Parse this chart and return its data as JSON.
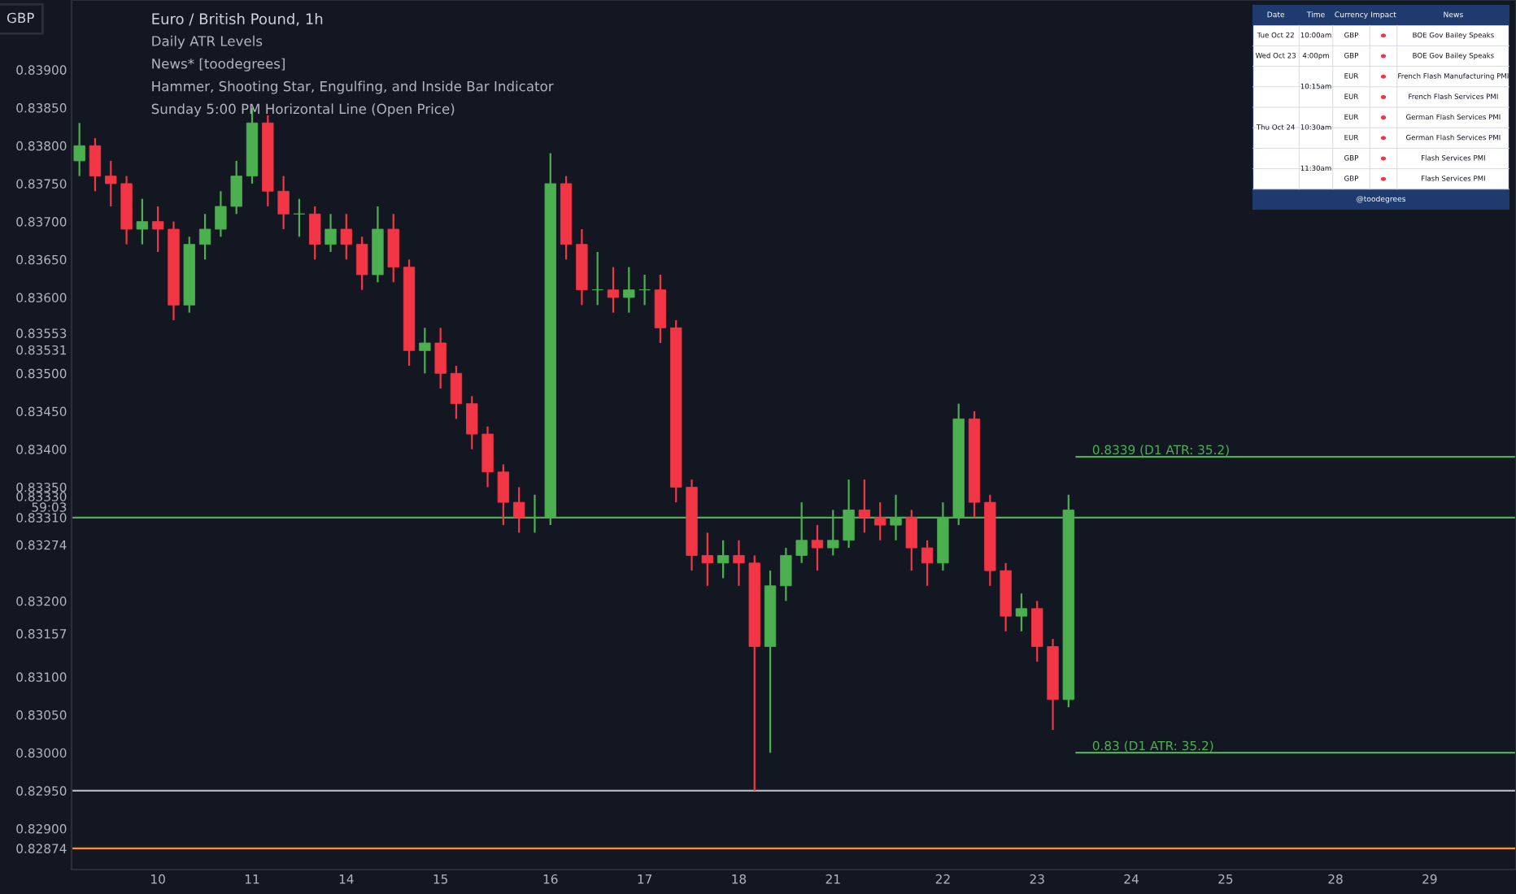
{
  "chart_data": [
    {
      "type": "candlestick",
      "title": "Euro / British Pound, 1h",
      "ylabel": "GBP",
      "annotations": [
        "Daily ATR Levels",
        "News* [toodegrees]",
        "Hammer, Shooting Star, Engulfing, and Inside Bar Indicator",
        "Sunday 5:00 PM Horizontal Line (Open Price)"
      ],
      "colors": [
        "#4caf50",
        "#f23645",
        "#f23645",
        "#f23645",
        "#4caf50",
        "#f23645",
        "#f23645",
        "#4caf50",
        "#4caf50",
        "#4caf50",
        "#4caf50",
        "#4caf50",
        "#f23645",
        "#f23645",
        "#4caf50",
        "#f23645",
        "#4caf50",
        "#f23645",
        "#f23645",
        "#4caf50",
        "#f23645",
        "#f23645",
        "#4caf50",
        "#f23645",
        "#f23645",
        "#f23645",
        "#f23645",
        "#f23645",
        "#f23645",
        "#4caf50",
        "#4caf50",
        "#f23645",
        "#f23645",
        "#4caf50",
        "#f23645",
        "#4caf50",
        "#4caf50",
        "#f23645",
        "#f23645",
        "#f23645",
        "#f23645",
        "#4caf50",
        "#f23645",
        "#f23645",
        "#4caf50",
        "#4caf50",
        "#4caf50",
        "#f23645",
        "#4caf50",
        "#4caf50",
        "#f23645",
        "#f23645",
        "#4caf50",
        "#f23645",
        "#f23645",
        "#4caf50",
        "#4caf50",
        "#f23645",
        "#f23645",
        "#f23645",
        "#4caf50",
        "#f23645",
        "#f23645",
        "#4caf50",
        null,
        null,
        null,
        null,
        null,
        null,
        null,
        null,
        null,
        null,
        null,
        null,
        null,
        null,
        null,
        null,
        null,
        null,
        null,
        null,
        null,
        null,
        null,
        null,
        null,
        null,
        null,
        null
      ],
      "categories": [
        null,
        null,
        null,
        null,
        null,
        "10",
        null,
        null,
        null,
        null,
        null,
        "11",
        null,
        null,
        null,
        null,
        null,
        "14",
        null,
        null,
        null,
        null,
        null,
        "15",
        null,
        null,
        null,
        null,
        null,
        null,
        "16",
        null,
        null,
        null,
        null,
        null,
        "17",
        null,
        null,
        null,
        null,
        null,
        "18",
        null,
        null,
        null,
        null,
        null,
        "21",
        null,
        null,
        null,
        null,
        null,
        null,
        "22",
        null,
        null,
        null,
        null,
        null,
        "23",
        null,
        null,
        null,
        null,
        null,
        "24",
        null,
        null,
        null,
        null,
        null,
        "25",
        null,
        null,
        null,
        null,
        null,
        null,
        "28",
        null,
        null,
        null,
        null,
        null,
        "29",
        null,
        null,
        null,
        null,
        null
      ],
      "ohlc": [
        [
          0.8378,
          0.8383,
          0.8376,
          0.838
        ],
        [
          0.838,
          0.8381,
          0.8374,
          0.8376
        ],
        [
          0.8376,
          0.8378,
          0.8372,
          0.8375
        ],
        [
          0.8375,
          0.8376,
          0.8367,
          0.8369
        ],
        [
          0.8369,
          0.8373,
          0.8367,
          0.837
        ],
        [
          0.837,
          0.8372,
          0.8366,
          0.8369
        ],
        [
          0.8369,
          0.837,
          0.8357,
          0.8359
        ],
        [
          0.8359,
          0.8368,
          0.8358,
          0.8367
        ],
        [
          0.8367,
          0.8371,
          0.8365,
          0.8369
        ],
        [
          0.8369,
          0.8374,
          0.8368,
          0.8372
        ],
        [
          0.8372,
          0.8378,
          0.8371,
          0.8376
        ],
        [
          0.8376,
          0.8385,
          0.8375,
          0.8383
        ],
        [
          0.8383,
          0.8384,
          0.8372,
          0.8374
        ],
        [
          0.8374,
          0.8376,
          0.8369,
          0.8371
        ],
        [
          0.8371,
          0.8373,
          0.8368,
          0.8371
        ],
        [
          0.8371,
          0.8372,
          0.8365,
          0.8367
        ],
        [
          0.8367,
          0.8371,
          0.8366,
          0.8369
        ],
        [
          0.8369,
          0.8371,
          0.8365,
          0.8367
        ],
        [
          0.8367,
          0.8368,
          0.8361,
          0.8363
        ],
        [
          0.8363,
          0.8372,
          0.8362,
          0.8369
        ],
        [
          0.8369,
          0.8371,
          0.8362,
          0.8364
        ],
        [
          0.8364,
          0.8365,
          0.8351,
          0.8353
        ],
        [
          0.8353,
          0.8356,
          0.835,
          0.8354
        ],
        [
          0.8354,
          0.8356,
          0.8348,
          0.835
        ],
        [
          0.835,
          0.8351,
          0.8344,
          0.8346
        ],
        [
          0.8346,
          0.8347,
          0.834,
          0.8342
        ],
        [
          0.8342,
          0.8343,
          0.8335,
          0.8337
        ],
        [
          0.8337,
          0.8338,
          0.833,
          0.8333
        ],
        [
          0.8333,
          0.8335,
          0.8329,
          0.8331
        ],
        [
          0.8331,
          0.8334,
          0.8329,
          0.8331
        ],
        [
          0.8331,
          0.8379,
          0.833,
          0.8375
        ],
        [
          0.8375,
          0.8376,
          0.8365,
          0.8367
        ],
        [
          0.8367,
          0.8369,
          0.8359,
          0.8361
        ],
        [
          0.8361,
          0.8366,
          0.8359,
          0.8361
        ],
        [
          0.8361,
          0.8364,
          0.8358,
          0.836
        ],
        [
          0.836,
          0.8364,
          0.8358,
          0.8361
        ],
        [
          0.8361,
          0.8363,
          0.8359,
          0.8361
        ],
        [
          0.8361,
          0.8363,
          0.8354,
          0.8356
        ],
        [
          0.8356,
          0.8357,
          0.8333,
          0.8335
        ],
        [
          0.8335,
          0.8336,
          0.8324,
          0.8326
        ],
        [
          0.8326,
          0.8329,
          0.8322,
          0.8325
        ],
        [
          0.8325,
          0.8328,
          0.8323,
          0.8326
        ],
        [
          0.8326,
          0.8328,
          0.8322,
          0.8325
        ],
        [
          0.8325,
          0.8326,
          0.8295,
          0.8314
        ],
        [
          0.8314,
          0.8324,
          0.83,
          0.8322
        ],
        [
          0.8322,
          0.8327,
          0.832,
          0.8326
        ],
        [
          0.8326,
          0.8333,
          0.8325,
          0.8328
        ],
        [
          0.8328,
          0.833,
          0.8324,
          0.8327
        ],
        [
          0.8327,
          0.8332,
          0.8326,
          0.8328
        ],
        [
          0.8328,
          0.8336,
          0.8327,
          0.8332
        ],
        [
          0.8332,
          0.8336,
          0.8329,
          0.8331
        ],
        [
          0.8331,
          0.8333,
          0.8328,
          0.833
        ],
        [
          0.833,
          0.8334,
          0.8328,
          0.8331
        ],
        [
          0.8331,
          0.8332,
          0.8324,
          0.8327
        ],
        [
          0.8327,
          0.8328,
          0.8322,
          0.8325
        ],
        [
          0.8325,
          0.8333,
          0.8324,
          0.8331
        ],
        [
          0.8331,
          0.8346,
          0.833,
          0.8344
        ],
        [
          0.8344,
          0.8345,
          0.8331,
          0.8333
        ],
        [
          0.8333,
          0.8334,
          0.8322,
          0.8324
        ],
        [
          0.8324,
          0.8325,
          0.8316,
          0.8318
        ],
        [
          0.8318,
          0.8321,
          0.8316,
          0.8319
        ],
        [
          0.8319,
          0.832,
          0.8312,
          0.8314
        ],
        [
          0.8314,
          0.8315,
          0.8303,
          0.8307
        ],
        [
          0.8307,
          0.8334,
          0.8306,
          0.8332
        ],
        null,
        null,
        null,
        null,
        null,
        null,
        null,
        null,
        null,
        null,
        null,
        null,
        null,
        null,
        null,
        null,
        null,
        null,
        null,
        null,
        null,
        null,
        null,
        null,
        null,
        null,
        null,
        null
      ],
      "ylim": [
        0.82846,
        0.83992
      ],
      "yticks": [
        {
          "value": 0.839,
          "label": "0.83900"
        },
        {
          "value": 0.8385,
          "label": "0.83850"
        },
        {
          "value": 0.838,
          "label": "0.83800"
        },
        {
          "value": 0.8375,
          "label": "0.83750"
        },
        {
          "value": 0.837,
          "label": "0.83700"
        },
        {
          "value": 0.8365,
          "label": "0.83650"
        },
        {
          "value": 0.836,
          "label": "0.83600"
        },
        {
          "value": 0.83553,
          "label": "0.83553"
        },
        {
          "value": 0.83531,
          "label": "0.83531"
        },
        {
          "value": 0.835,
          "label": "0.83500"
        },
        {
          "value": 0.8345,
          "label": "0.83450"
        },
        {
          "value": 0.834,
          "label": "0.83400"
        },
        {
          "value": 0.8335,
          "label": "0.83350"
        },
        {
          "value": 0.8333,
          "label": "0.83330\n59:03"
        },
        {
          "value": 0.8331,
          "label": "0.83310"
        },
        {
          "value": 0.83274,
          "label": "0.83274"
        },
        {
          "value": 0.832,
          "label": "0.83200"
        },
        {
          "value": 0.83157,
          "label": "0.83157"
        },
        {
          "value": 0.831,
          "label": "0.83100"
        },
        {
          "value": 0.8305,
          "label": "0.83050"
        },
        {
          "value": 0.83,
          "label": "0.83000"
        },
        {
          "value": 0.8295,
          "label": "0.82950"
        },
        {
          "value": 0.829,
          "label": "0.82900"
        },
        {
          "value": 0.82874,
          "label": "0.82874"
        }
      ],
      "ref_lines": [
        {
          "axis": "y",
          "value": 0.8339,
          "label": "0.8339 (D1 ATR: 35.2)",
          "color": "#4caf50"
        },
        {
          "axis": "y",
          "value": 0.83,
          "label": "0.83 (D1 ATR: 35.2)",
          "color": "#4caf50"
        },
        {
          "axis": "y",
          "value": 0.8331,
          "color": "#4caf50"
        },
        {
          "axis": "y",
          "value": 0.8295,
          "color": "#b2b5be"
        },
        {
          "axis": "y",
          "value": 0.82874,
          "color": "#ff9800"
        }
      ]
    },
    {
      "type": "other",
      "categories": [
        "Date",
        "Time",
        "Currency",
        "Impact",
        "News"
      ],
      "cell_labels": [
        [
          "Tue Oct 22",
          "10:00am",
          "GBP",
          null,
          "BOE Gov Bailey Speaks"
        ],
        [
          "Wed Oct 23",
          "4:00pm",
          "GBP",
          null,
          "BOE Gov Bailey Speaks"
        ],
        [
          "Thu Oct 24",
          "10:15am",
          "EUR",
          null,
          "French Flash Manufacturing PMI"
        ],
        [
          null,
          null,
          "EUR",
          null,
          "French Flash Services PMI"
        ],
        [
          null,
          "10:30am",
          "EUR",
          null,
          "German Flash Services PMI"
        ],
        [
          null,
          null,
          "EUR",
          null,
          "German Flash Services PMI"
        ],
        [
          null,
          "11:30am",
          "GBP",
          null,
          "Flash Services PMI"
        ],
        [
          null,
          null,
          "GBP",
          null,
          "Flash Services PMI"
        ]
      ],
      "colors": [
        "#f23645",
        "#f23645",
        "#f23645",
        "#f23645",
        "#f23645",
        "#f23645",
        "#f23645",
        "#f23645"
      ],
      "annotations": [
        "@toodegrees"
      ]
    }
  ]
}
